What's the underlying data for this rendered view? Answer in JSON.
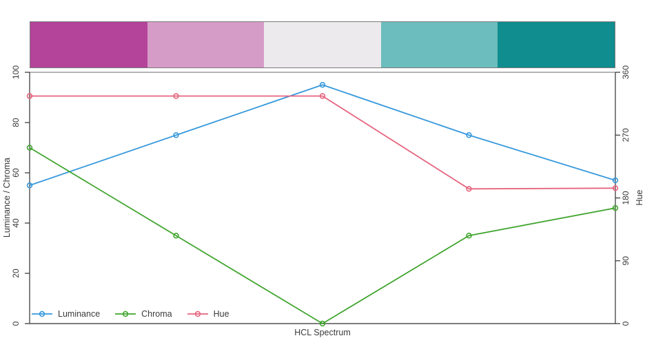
{
  "figure": {
    "xlabel": "HCL Spectrum",
    "ylabel_left": "Luminance / Chroma",
    "ylabel_right": "Hue"
  },
  "palette": {
    "border_color": "#7a7a7a",
    "colors": [
      "#b4439a",
      "#d69cc8",
      "#eceaec",
      "#6cbdbd",
      "#0f8d8f"
    ]
  },
  "chart_data": {
    "type": "line",
    "title": "",
    "xlabel": "HCL Spectrum",
    "ylabel_left": "Luminance / Chroma",
    "ylabel_right": "Hue",
    "x": [
      1,
      2,
      3,
      4,
      5
    ],
    "series": [
      {
        "name": "Luminance",
        "axis": "left",
        "color": "#3598dc",
        "values": [
          55,
          75,
          95,
          75,
          57
        ]
      },
      {
        "name": "Chroma",
        "axis": "left",
        "color": "#41a52f",
        "values": [
          70,
          35,
          0,
          35,
          46
        ]
      },
      {
        "name": "Hue",
        "axis": "right",
        "color": "#e5647e",
        "values": [
          326,
          326,
          326,
          193,
          194
        ]
      }
    ],
    "left_axis": {
      "range": [
        0,
        100
      ],
      "ticks": [
        0,
        20,
        40,
        60,
        80,
        100
      ]
    },
    "right_axis": {
      "range": [
        0,
        360
      ],
      "ticks": [
        0,
        90,
        180,
        270,
        360
      ]
    },
    "legend_position": "bottom-left",
    "grid": false,
    "marker": "circle-open",
    "axis_color": "#2f2f2f",
    "top_border_color": "#9c9c9c"
  }
}
